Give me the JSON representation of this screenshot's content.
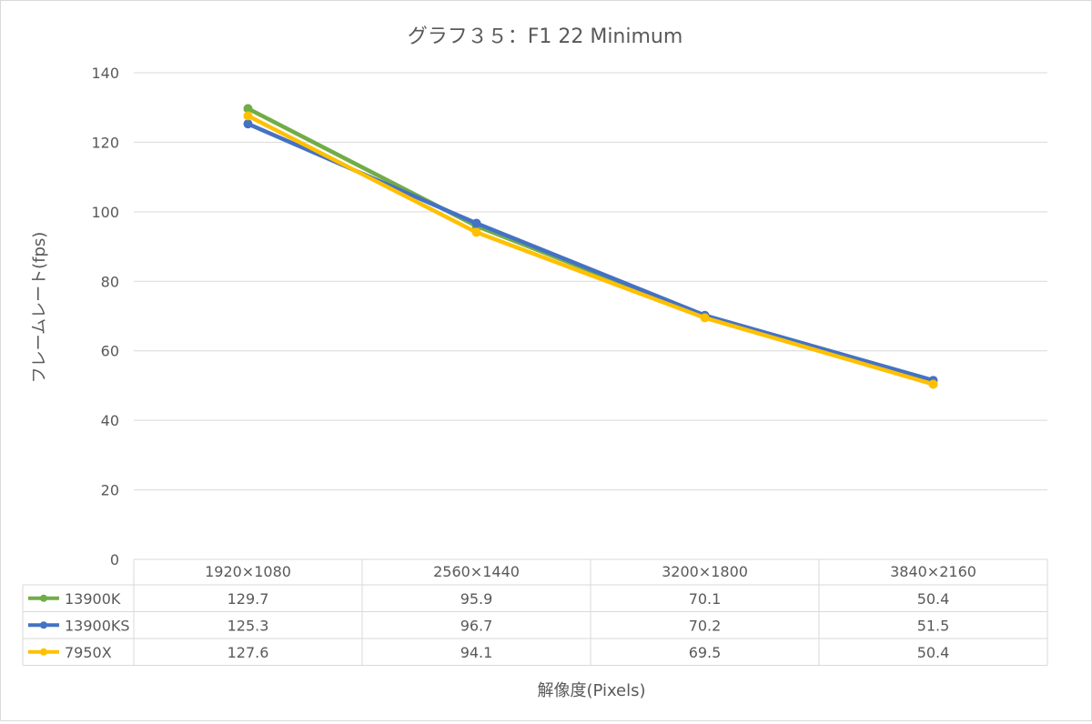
{
  "chart_data": {
    "type": "line",
    "title": "グラフ３５：F1 22 Minimum",
    "xlabel": "解像度(Pixels)",
    "ylabel": "フレームレート(fps)",
    "categories": [
      "1920×1080",
      "2560×1440",
      "3200×1800",
      "3840×2160"
    ],
    "ylim": [
      0,
      140
    ],
    "yticks": [
      0,
      20,
      40,
      60,
      80,
      100,
      120,
      140
    ],
    "grid": true,
    "legend": "data-table",
    "series": [
      {
        "name": "13900K",
        "color": "#70ad47",
        "values": [
          129.7,
          95.9,
          70.1,
          50.4
        ],
        "labels": [
          "129.7",
          "95.9",
          "70.1",
          "50.4"
        ]
      },
      {
        "name": "13900KS",
        "color": "#4472c4",
        "values": [
          125.3,
          96.7,
          70.2,
          51.5
        ],
        "labels": [
          "125.3",
          "96.7",
          "70.2",
          "51.5"
        ]
      },
      {
        "name": "7950X",
        "color": "#ffc000",
        "values": [
          127.6,
          94.1,
          69.5,
          50.4
        ],
        "labels": [
          "127.6",
          "94.1",
          "69.5",
          "50.4"
        ]
      }
    ]
  }
}
